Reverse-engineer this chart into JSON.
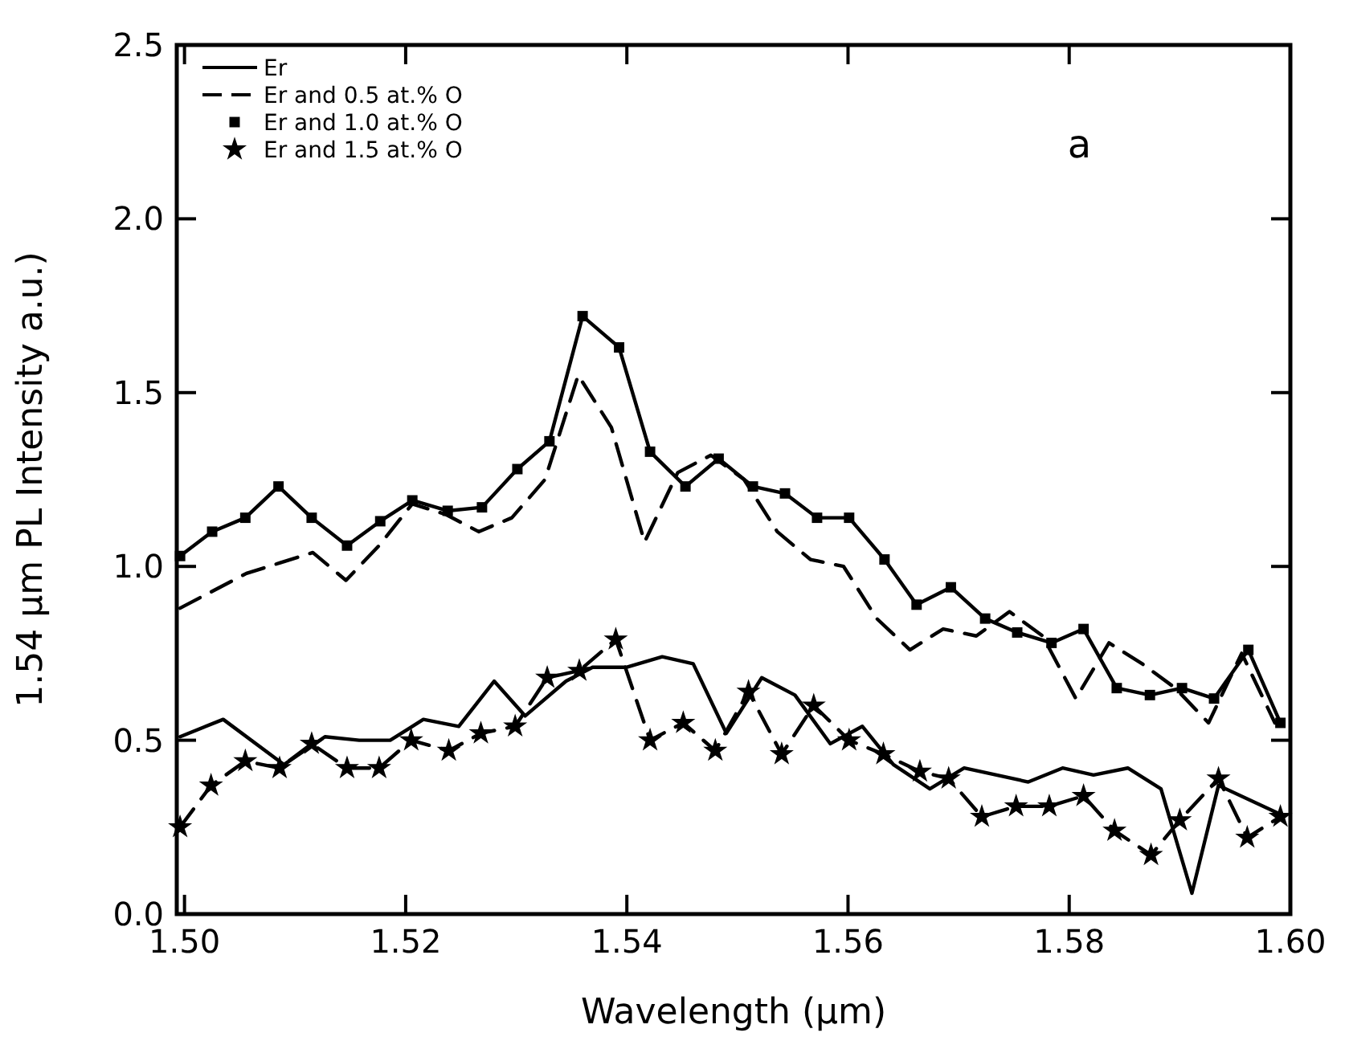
{
  "chart_data": {
    "type": "line",
    "xlabel": "Wavelength (μm)",
    "ylabel": "1.54 μm PL Intensity a.u.)",
    "annotations": [
      "a"
    ],
    "xlim": [
      1.4993,
      1.6
    ],
    "ylim": [
      0,
      2.5
    ],
    "xticks": [
      {
        "value": 1.5,
        "label": "1.50"
      },
      {
        "value": 1.52,
        "label": "1.52"
      },
      {
        "value": 1.54,
        "label": "1.54"
      },
      {
        "value": 1.56,
        "label": "1.56"
      },
      {
        "value": 1.58,
        "label": "1.58"
      },
      {
        "value": 1.6,
        "label": "1.60"
      }
    ],
    "yticks": [
      {
        "value": 0,
        "label": "0.0"
      },
      {
        "value": 0.5,
        "label": "0.5"
      },
      {
        "value": 1,
        "label": "1.0"
      },
      {
        "value": 1.5,
        "label": "1.5"
      },
      {
        "value": 2,
        "label": "2.0"
      },
      {
        "value": 2.5,
        "label": "2.5"
      }
    ],
    "grid": false,
    "legend": "top left",
    "series": [
      {
        "name": "Er",
        "color": "#000000",
        "line_style": "solid",
        "marker": "none",
        "x": [
          1.4996,
          1.5035,
          1.509,
          1.5127,
          1.5158,
          1.5186,
          1.5216,
          1.5248,
          1.528,
          1.5308,
          1.5345,
          1.5369,
          1.54,
          1.5432,
          1.546,
          1.549,
          1.5522,
          1.5552,
          1.5584,
          1.5613,
          1.5641,
          1.5674,
          1.5705,
          1.5763,
          1.5794,
          1.5822,
          1.5853,
          1.5883,
          1.5911,
          1.5935,
          1.5989
        ],
        "values": [
          0.51,
          0.56,
          0.43,
          0.51,
          0.5,
          0.5,
          0.56,
          0.54,
          0.67,
          0.57,
          0.67,
          0.71,
          0.71,
          0.74,
          0.72,
          0.52,
          0.68,
          0.63,
          0.49,
          0.54,
          0.43,
          0.36,
          0.42,
          0.38,
          0.42,
          0.4,
          0.42,
          0.36,
          0.06,
          0.37,
          0.29
        ]
      },
      {
        "name": "Er and 0.5 at.% O",
        "color": "#000000",
        "line_style": "dashed",
        "marker": "none",
        "x": [
          1.4996,
          1.5026,
          1.5056,
          1.5086,
          1.5116,
          1.5146,
          1.5176,
          1.5206,
          1.5236,
          1.5266,
          1.5296,
          1.5326,
          1.5356,
          1.5386,
          1.5416,
          1.5446,
          1.5476,
          1.5506,
          1.5536,
          1.5566,
          1.5596,
          1.5626,
          1.5656,
          1.5686,
          1.5716,
          1.5746,
          1.5776,
          1.5806,
          1.5836,
          1.5866,
          1.5896,
          1.5926,
          1.5956,
          1.5986
        ],
        "values": [
          0.88,
          0.93,
          0.98,
          1.01,
          1.04,
          0.96,
          1.06,
          1.18,
          1.15,
          1.1,
          1.14,
          1.25,
          1.55,
          1.4,
          1.07,
          1.27,
          1.32,
          1.25,
          1.1,
          1.02,
          1.0,
          0.85,
          0.76,
          0.82,
          0.8,
          0.87,
          0.8,
          0.62,
          0.78,
          0.72,
          0.65,
          0.55,
          0.75,
          0.55
        ]
      },
      {
        "name": "Er and 1.0 at.% O",
        "color": "#000000",
        "line_style": "solid",
        "marker": "square",
        "x": [
          1.4996,
          1.5025,
          1.5055,
          1.5085,
          1.5115,
          1.5147,
          1.5177,
          1.5206,
          1.5238,
          1.5269,
          1.5301,
          1.533,
          1.536,
          1.5393,
          1.5421,
          1.5453,
          1.5483,
          1.5514,
          1.5543,
          1.5572,
          1.5601,
          1.5633,
          1.5662,
          1.5693,
          1.5724,
          1.5753,
          1.5784,
          1.5813,
          1.5843,
          1.5873,
          1.5902,
          1.5931,
          1.5962,
          1.5991
        ],
        "values": [
          1.03,
          1.1,
          1.14,
          1.23,
          1.14,
          1.06,
          1.13,
          1.19,
          1.16,
          1.17,
          1.28,
          1.36,
          1.72,
          1.63,
          1.33,
          1.23,
          1.31,
          1.23,
          1.21,
          1.14,
          1.14,
          1.02,
          0.89,
          0.94,
          0.85,
          0.81,
          0.78,
          0.82,
          0.65,
          0.63,
          0.65,
          0.62,
          0.76,
          0.55
        ]
      },
      {
        "name": "Er and 1.5 at.% O",
        "color": "#000000",
        "line_style": "dashed",
        "marker": "star",
        "x": [
          1.4996,
          1.5024,
          1.5055,
          1.5086,
          1.5115,
          1.5147,
          1.5176,
          1.5205,
          1.5239,
          1.5268,
          1.5299,
          1.5328,
          1.5357,
          1.539,
          1.5421,
          1.5451,
          1.548,
          1.551,
          1.554,
          1.5569,
          1.5601,
          1.5632,
          1.5665,
          1.5691,
          1.5721,
          1.5752,
          1.5782,
          1.5813,
          1.5841,
          1.5874,
          1.59,
          1.5935,
          1.5961,
          1.5991
        ],
        "values": [
          0.25,
          0.37,
          0.44,
          0.42,
          0.49,
          0.42,
          0.42,
          0.5,
          0.47,
          0.52,
          0.54,
          0.68,
          0.7,
          0.79,
          0.5,
          0.55,
          0.47,
          0.64,
          0.46,
          0.6,
          0.5,
          0.46,
          0.41,
          0.39,
          0.28,
          0.31,
          0.31,
          0.34,
          0.24,
          0.17,
          0.27,
          0.39,
          0.22,
          0.28
        ]
      }
    ]
  }
}
